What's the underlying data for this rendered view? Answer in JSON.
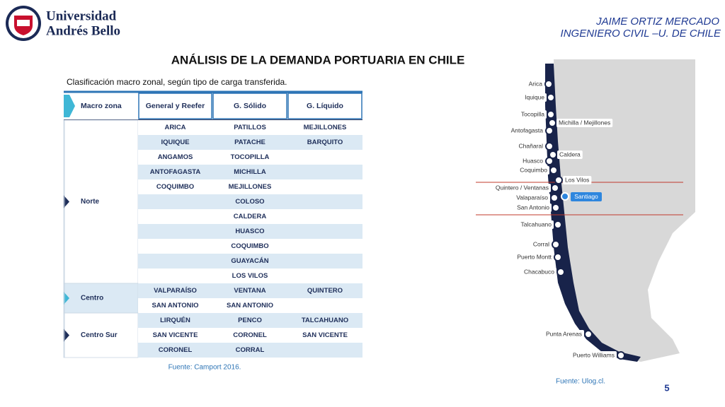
{
  "header": {
    "logo_line1": "Universidad",
    "logo_line2": "Andrés Bello",
    "author": "JAIME ORTIZ MERCADO",
    "affiliation": "INGENIERO CIVIL –U. DE CHILE"
  },
  "title": "ANÁLISIS DE LA DEMANDA PORTUARIA EN CHILE",
  "subtitle": "Clasificación macro zonal, según tipo de carga transferida.",
  "table": {
    "headers": [
      "Macro zona",
      "General y Reefer",
      "G. Sólido",
      "G. Líquido"
    ],
    "groups": [
      {
        "zone": "Norte",
        "rows": [
          [
            "ARICA",
            "PATILLOS",
            "MEJILLONES"
          ],
          [
            "IQUIQUE",
            "PATACHE",
            "BARQUITO"
          ],
          [
            "ANGAMOS",
            "TOCOPILLA",
            null
          ],
          [
            "ANTOFAGASTA",
            "MICHILLA",
            null
          ],
          [
            "COQUIMBO",
            "MEJILLONES",
            null
          ],
          [
            null,
            "COLOSO",
            null
          ],
          [
            null,
            "CALDERA",
            null
          ],
          [
            null,
            "HUASCO",
            null
          ],
          [
            null,
            "COQUIMBO",
            null
          ],
          [
            null,
            "GUAYACÁN",
            null
          ],
          [
            null,
            "LOS VILOS",
            null
          ]
        ]
      },
      {
        "zone": "Centro",
        "rows": [
          [
            "VALPARAÍSO",
            "VENTANA",
            "QUINTERO"
          ],
          [
            "SAN ANTONIO",
            "SAN ANTONIO",
            null
          ]
        ]
      },
      {
        "zone": "Centro Sur",
        "rows": [
          [
            "LIRQUÉN",
            "PENCO",
            "TALCAHUANO"
          ],
          [
            "SAN VICENTE",
            "CORONEL",
            "SAN VICENTE"
          ],
          [
            "CORONEL",
            "CORRAL",
            null
          ]
        ]
      }
    ],
    "source": "Fuente: Camport 2016."
  },
  "map": {
    "ports": [
      "Arica",
      "Iquique",
      "Tocopilla",
      "Michilla / Mejillones",
      "Antofagasta",
      "Chañaral",
      "Caldera",
      "Huasco",
      "Coquimbo",
      "Los Vilos",
      "Quintero / Ventanas",
      "Valaparaíso",
      "San Antonio",
      "Talcahuano",
      "Corral",
      "Puerto Montt",
      "Chacabuco",
      "Punta Arenas",
      "Puerto Williams"
    ],
    "capital": "Santiago",
    "source": "Fuente: Ulog.cl."
  },
  "page_number": "5"
}
